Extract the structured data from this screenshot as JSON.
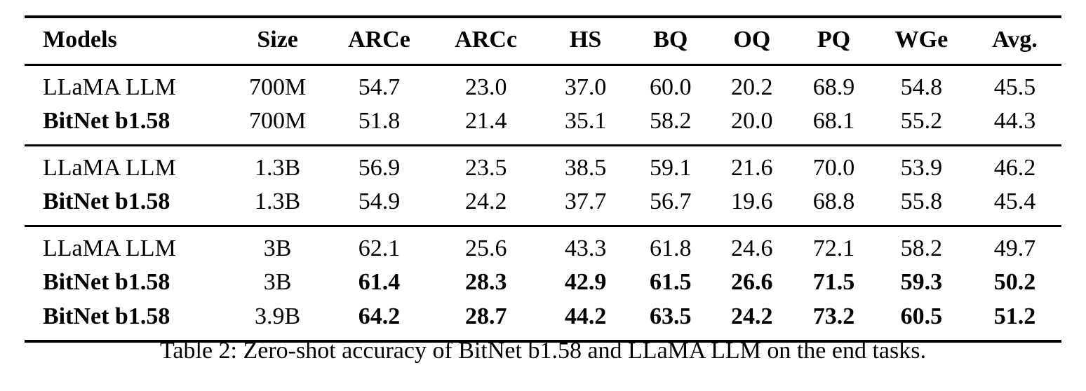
{
  "colors": {
    "background": "#ffffff",
    "text": "#000000",
    "rule": "#000000"
  },
  "caption": "Table 2: Zero-shot accuracy of BitNet b1.58 and LLaMA LLM on the end tasks.",
  "table": {
    "columns": [
      "Models",
      "Size",
      "ARCe",
      "ARCc",
      "HS",
      "BQ",
      "OQ",
      "PQ",
      "WGe",
      "Avg."
    ],
    "groups": [
      {
        "rows": [
          {
            "model": "LLaMA LLM",
            "model_bold": false,
            "size": "700M",
            "values": [
              "54.7",
              "23.0",
              "37.0",
              "60.0",
              "20.2",
              "68.9",
              "54.8",
              "45.5"
            ],
            "values_bold": false
          },
          {
            "model": "BitNet b1.58",
            "model_bold": true,
            "size": "700M",
            "values": [
              "51.8",
              "21.4",
              "35.1",
              "58.2",
              "20.0",
              "68.1",
              "55.2",
              "44.3"
            ],
            "values_bold": false
          }
        ]
      },
      {
        "rows": [
          {
            "model": "LLaMA LLM",
            "model_bold": false,
            "size": "1.3B",
            "values": [
              "56.9",
              "23.5",
              "38.5",
              "59.1",
              "21.6",
              "70.0",
              "53.9",
              "46.2"
            ],
            "values_bold": false
          },
          {
            "model": "BitNet b1.58",
            "model_bold": true,
            "size": "1.3B",
            "values": [
              "54.9",
              "24.2",
              "37.7",
              "56.7",
              "19.6",
              "68.8",
              "55.8",
              "45.4"
            ],
            "values_bold": false
          }
        ]
      },
      {
        "rows": [
          {
            "model": "LLaMA LLM",
            "model_bold": false,
            "size": "3B",
            "values": [
              "62.1",
              "25.6",
              "43.3",
              "61.8",
              "24.6",
              "72.1",
              "58.2",
              "49.7"
            ],
            "values_bold": false
          },
          {
            "model": "BitNet b1.58",
            "model_bold": true,
            "size": "3B",
            "values": [
              "61.4",
              "28.3",
              "42.9",
              "61.5",
              "26.6",
              "71.5",
              "59.3",
              "50.2"
            ],
            "values_bold": true
          },
          {
            "model": "BitNet b1.58",
            "model_bold": true,
            "size": "3.9B",
            "values": [
              "64.2",
              "28.7",
              "44.2",
              "63.5",
              "24.2",
              "73.2",
              "60.5",
              "51.2"
            ],
            "values_bold": true
          }
        ]
      }
    ]
  }
}
